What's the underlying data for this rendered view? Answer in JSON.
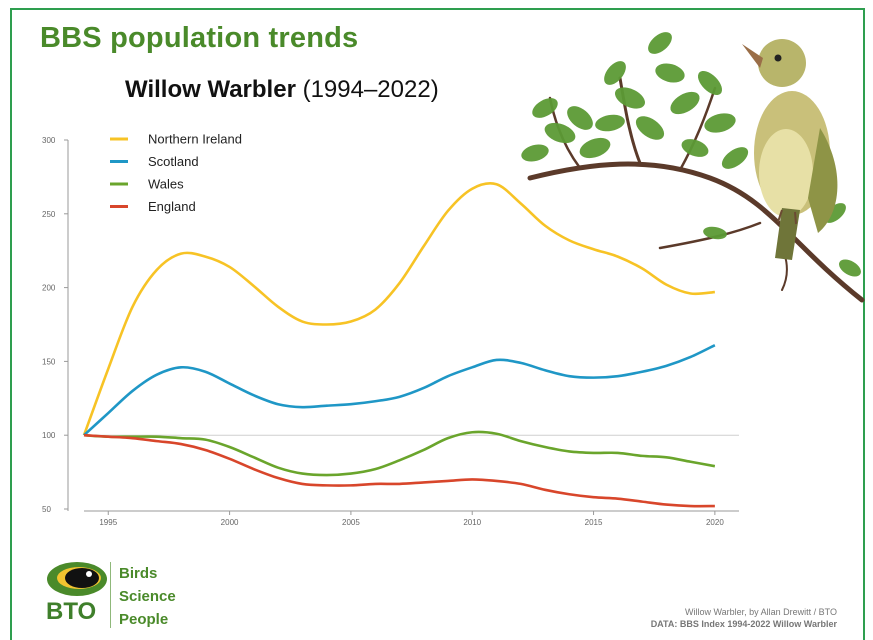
{
  "header": {
    "title": "BBS population trends",
    "chart_title_species": "Willow Warbler",
    "chart_title_years": "(1994–2022)"
  },
  "logo": {
    "abbr": "BTO",
    "words": [
      "Birds",
      "Science",
      "People"
    ]
  },
  "credits": {
    "photo": "Willow Warbler, by Allan Drewitt / BTO",
    "data": "DATA: BBS Index 1994-2022 Willow Warbler"
  },
  "chart_data": {
    "type": "line",
    "title": "Willow Warbler (1994–2022)",
    "xlabel": "",
    "ylabel": "",
    "xlim": [
      1994,
      2020.5
    ],
    "ylim": [
      50,
      300
    ],
    "x_ticks": [
      1995,
      2000,
      2005,
      2010,
      2015,
      2020
    ],
    "y_ticks": [
      50,
      100,
      150,
      200,
      250,
      300
    ],
    "reference_line": 100,
    "grid": false,
    "legend_position": "top-left",
    "x": [
      1994,
      1995,
      1996,
      1997,
      1998,
      1999,
      2000,
      2001,
      2002,
      2003,
      2004,
      2005,
      2006,
      2007,
      2008,
      2009,
      2010,
      2011,
      2012,
      2013,
      2014,
      2015,
      2016,
      2017,
      2018,
      2019,
      2020
    ],
    "series": [
      {
        "name": "Northern Ireland",
        "color": "#f7c325",
        "values": [
          100,
          145,
          187,
          212,
          223,
          221,
          214,
          201,
          187,
          177,
          175,
          177,
          185,
          203,
          228,
          252,
          267,
          270,
          257,
          242,
          232,
          226,
          221,
          213,
          202,
          196,
          197
        ]
      },
      {
        "name": "Scotland",
        "color": "#1f97c6",
        "values": [
          100,
          115,
          130,
          141,
          146,
          143,
          135,
          127,
          121,
          119,
          120,
          121,
          123,
          126,
          132,
          140,
          146,
          151,
          149,
          144,
          140,
          139,
          140,
          143,
          147,
          153,
          161
        ]
      },
      {
        "name": "Wales",
        "color": "#6aa52c",
        "values": [
          100,
          99,
          99,
          99,
          98,
          97,
          92,
          85,
          78,
          74,
          73,
          74,
          77,
          83,
          90,
          98,
          102,
          101,
          96,
          92,
          89,
          88,
          88,
          86,
          85,
          82,
          79
        ]
      },
      {
        "name": "England",
        "color": "#d8462b",
        "values": [
          100,
          99,
          98,
          96,
          94,
          90,
          84,
          77,
          71,
          67,
          66,
          66,
          67,
          67,
          68,
          69,
          70,
          69,
          67,
          63,
          60,
          58,
          57,
          55,
          53,
          52,
          52
        ]
      }
    ]
  }
}
